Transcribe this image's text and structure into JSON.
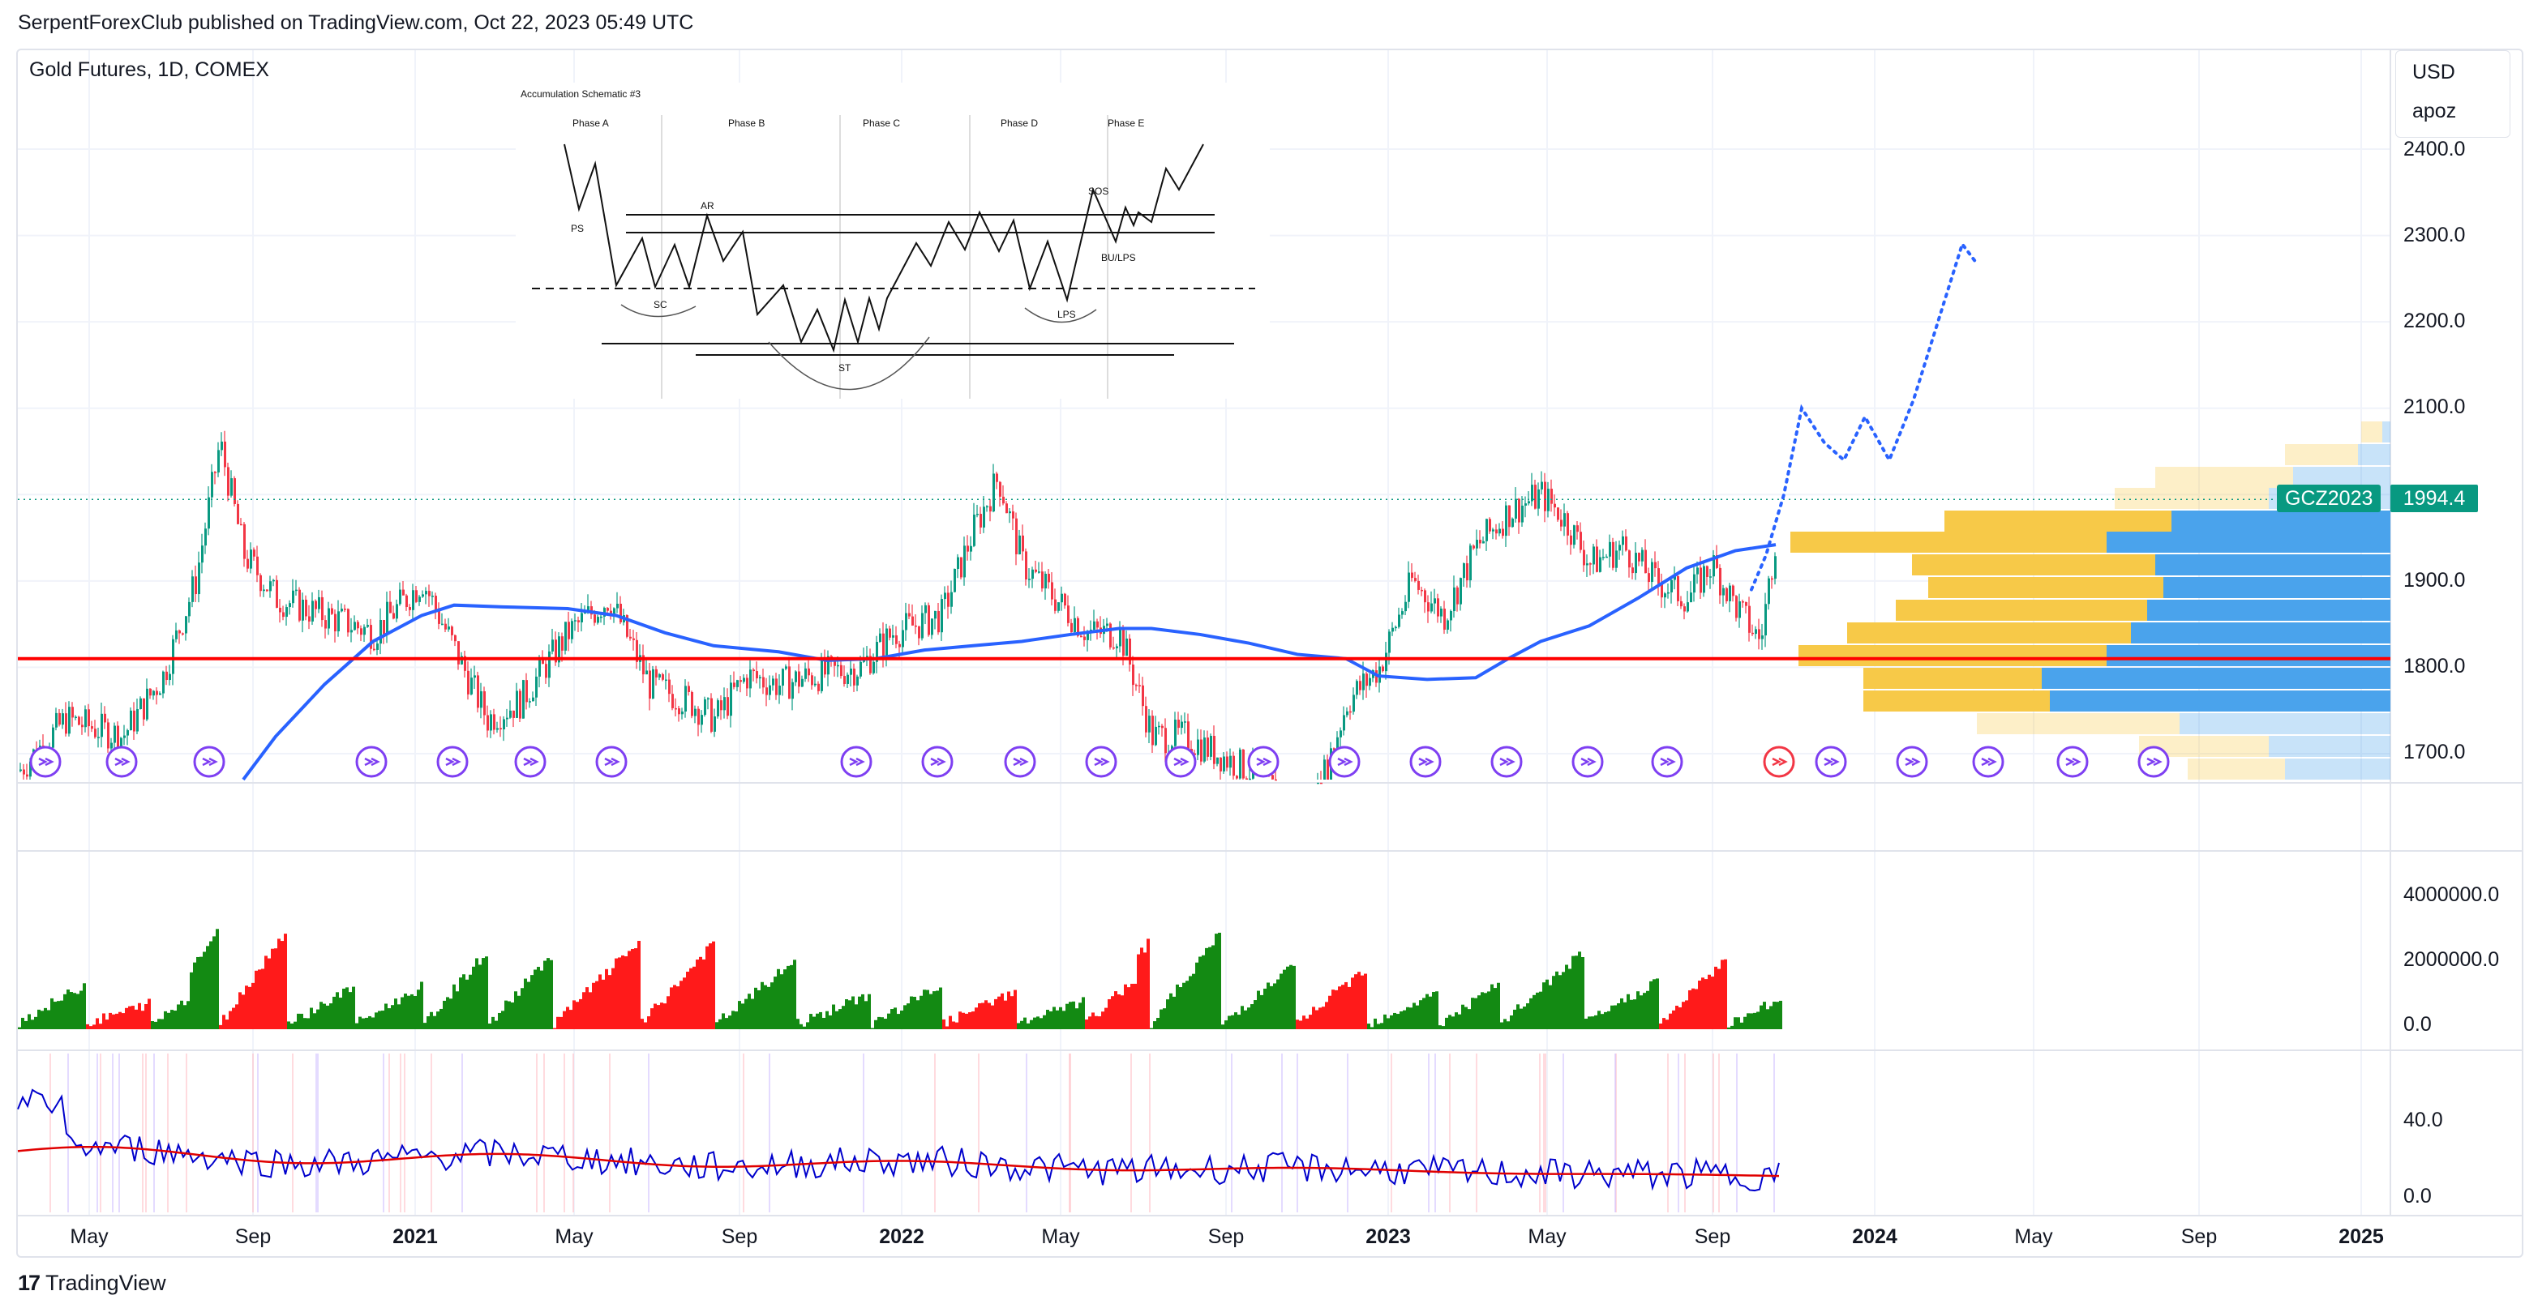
{
  "header": {
    "publish_line": "SerpentForexClub published on TradingView.com, Oct 22, 2023 05:49 UTC"
  },
  "chart": {
    "symbol_title": "Gold Futures, 1D, COMEX",
    "currency": "USD",
    "scale_mode": "apoz",
    "symbol_badge": "GCZ2023",
    "last_price": "1994.4",
    "price_axis": [
      "2400.0",
      "2300.0",
      "2200.0",
      "2100.0",
      "1900.0",
      "1800.0",
      "1700.0"
    ],
    "volume_axis": [
      "4000000.0",
      "2000000.0",
      "0.0"
    ],
    "oscillator_axis": [
      "40.0",
      "0.0"
    ],
    "time_axis": [
      {
        "label": "May",
        "bold": false
      },
      {
        "label": "Sep",
        "bold": false
      },
      {
        "label": "2021",
        "bold": true
      },
      {
        "label": "May",
        "bold": false
      },
      {
        "label": "Sep",
        "bold": false
      },
      {
        "label": "2022",
        "bold": true
      },
      {
        "label": "May",
        "bold": false
      },
      {
        "label": "Sep",
        "bold": false
      },
      {
        "label": "2023",
        "bold": true
      },
      {
        "label": "May",
        "bold": false
      },
      {
        "label": "Sep",
        "bold": false
      },
      {
        "label": "2024",
        "bold": true
      },
      {
        "label": "May",
        "bold": false
      },
      {
        "label": "Sep",
        "bold": false
      },
      {
        "label": "2025",
        "bold": true
      }
    ],
    "colors": {
      "up": "#089981",
      "down": "#f23645",
      "ma": "#2962ff",
      "support": "#ff0000",
      "projection": "#2962ff",
      "vp_up": "#f7c948",
      "vp_down": "#4aa3ec",
      "volume_up": "#138a13",
      "volume_down": "#ff1a1a"
    },
    "support_level": 1810,
    "last_price_value": 1994.4
  },
  "schematic": {
    "title": "Accumulation Schematic #3",
    "phases": [
      "Phase A",
      "Phase B",
      "Phase C",
      "Phase D",
      "Phase E"
    ],
    "labels": {
      "ps": "PS",
      "sc": "SC",
      "ar": "AR",
      "st": "ST",
      "sos": "SOS",
      "bu_lps": "BU/LPS",
      "lps": "LPS"
    }
  },
  "footer": {
    "brand": "TradingView",
    "brand_icon": "tradingview-logo-icon"
  }
}
